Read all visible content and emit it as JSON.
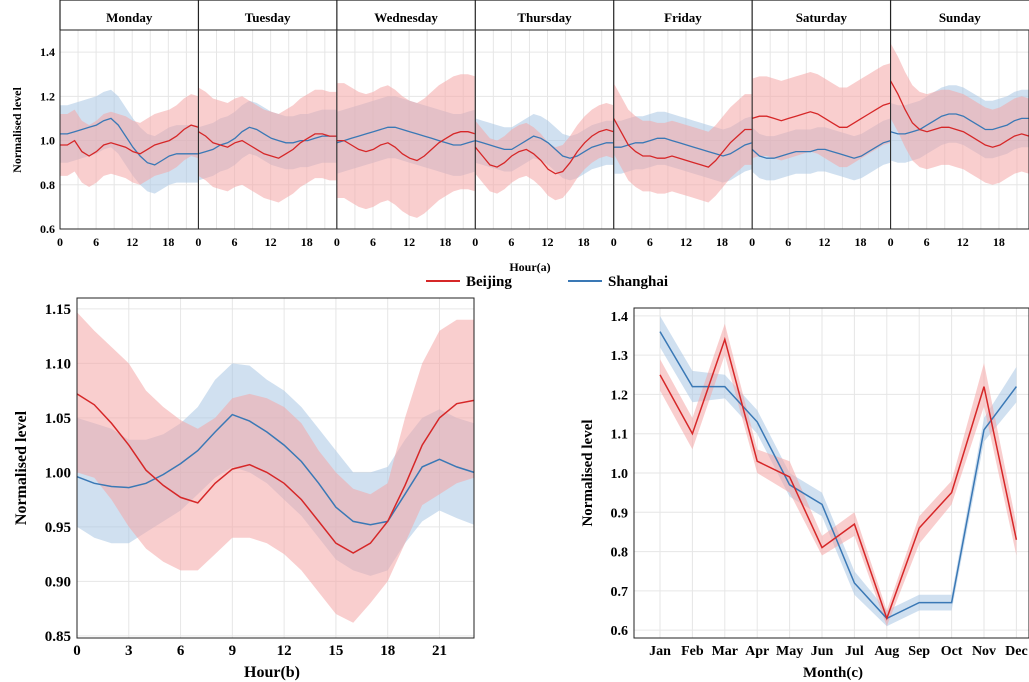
{
  "colors": {
    "beijing": "#d62728",
    "shanghai": "#3a78b5",
    "beijing_band": "#f4a6a6",
    "shanghai_band": "#a9c6e3"
  },
  "legend": {
    "items": [
      {
        "label": "Beijing",
        "color": "#d62728"
      },
      {
        "label": "Shanghai",
        "color": "#3a78b5"
      }
    ]
  },
  "chart_data": [
    {
      "id": "a",
      "type": "line",
      "panels": [
        "Monday",
        "Tuesday",
        "Wednesday",
        "Thursday",
        "Friday",
        "Saturday",
        "Sunday"
      ],
      "xlabel": "Hour(a)",
      "ylabel": "Normalised level",
      "xticks": [
        0,
        6,
        12,
        18
      ],
      "xlim": [
        0,
        23
      ],
      "ylim": [
        0.6,
        1.5
      ],
      "yticks": [
        "0.6",
        "0.8",
        "1.0",
        "1.2",
        "1.4"
      ],
      "series": [
        {
          "name": "Beijing",
          "values": [
            [
              0.98,
              0.98,
              1.0,
              0.95,
              0.93,
              0.95,
              0.98,
              0.99,
              0.98,
              0.97,
              0.95,
              0.94,
              0.96,
              0.98,
              0.99,
              1.0,
              1.02,
              1.05,
              1.07,
              1.06
            ],
            [
              1.04,
              1.02,
              0.99,
              0.98,
              0.97,
              0.99,
              1.0,
              0.98,
              0.96,
              0.94,
              0.93,
              0.92,
              0.94,
              0.96,
              0.99,
              1.01,
              1.03,
              1.03,
              1.02,
              1.02
            ],
            [
              1.0,
              1.0,
              0.98,
              0.96,
              0.95,
              0.96,
              0.98,
              0.99,
              0.97,
              0.94,
              0.92,
              0.91,
              0.93,
              0.96,
              0.99,
              1.01,
              1.03,
              1.04,
              1.04,
              1.03
            ],
            [
              0.97,
              0.93,
              0.89,
              0.88,
              0.9,
              0.93,
              0.95,
              0.96,
              0.94,
              0.91,
              0.87,
              0.85,
              0.86,
              0.9,
              0.95,
              0.99,
              1.02,
              1.04,
              1.05,
              1.04
            ],
            [
              1.1,
              1.04,
              0.98,
              0.95,
              0.93,
              0.93,
              0.92,
              0.92,
              0.93,
              0.92,
              0.91,
              0.9,
              0.89,
              0.88,
              0.91,
              0.95,
              0.99,
              1.02,
              1.05,
              1.05
            ],
            [
              1.1,
              1.11,
              1.11,
              1.1,
              1.09,
              1.1,
              1.11,
              1.12,
              1.13,
              1.12,
              1.1,
              1.08,
              1.06,
              1.06,
              1.08,
              1.1,
              1.12,
              1.14,
              1.16,
              1.17
            ],
            [
              1.27,
              1.21,
              1.14,
              1.08,
              1.05,
              1.04,
              1.05,
              1.06,
              1.06,
              1.05,
              1.04,
              1.02,
              1.0,
              0.98,
              0.97,
              0.98,
              1.0,
              1.02,
              1.03,
              1.02
            ]
          ]
        },
        {
          "name": "Shanghai",
          "values": [
            [
              1.03,
              1.03,
              1.04,
              1.05,
              1.06,
              1.07,
              1.09,
              1.1,
              1.07,
              1.02,
              0.97,
              0.93,
              0.9,
              0.89,
              0.91,
              0.93,
              0.94,
              0.94,
              0.94,
              0.94
            ],
            [
              0.94,
              0.95,
              0.96,
              0.98,
              0.99,
              1.01,
              1.04,
              1.06,
              1.05,
              1.03,
              1.01,
              1.0,
              0.99,
              0.99,
              1.0,
              1.0,
              1.01,
              1.02,
              1.02,
              1.02
            ],
            [
              0.99,
              1.0,
              1.01,
              1.02,
              1.03,
              1.04,
              1.05,
              1.06,
              1.06,
              1.05,
              1.04,
              1.03,
              1.02,
              1.01,
              1.0,
              0.99,
              0.98,
              0.98,
              0.99,
              1.0
            ],
            [
              1.0,
              0.99,
              0.98,
              0.97,
              0.96,
              0.96,
              0.98,
              1.0,
              1.02,
              1.01,
              0.99,
              0.96,
              0.93,
              0.92,
              0.93,
              0.95,
              0.97,
              0.98,
              0.99,
              0.99
            ],
            [
              0.97,
              0.97,
              0.98,
              0.99,
              0.99,
              1.0,
              1.01,
              1.01,
              1.0,
              0.99,
              0.98,
              0.97,
              0.96,
              0.95,
              0.94,
              0.93,
              0.94,
              0.96,
              0.98,
              0.99
            ],
            [
              0.96,
              0.93,
              0.92,
              0.92,
              0.93,
              0.94,
              0.95,
              0.95,
              0.95,
              0.96,
              0.96,
              0.95,
              0.94,
              0.93,
              0.92,
              0.93,
              0.95,
              0.97,
              0.99,
              1.0
            ],
            [
              1.04,
              1.03,
              1.03,
              1.04,
              1.05,
              1.07,
              1.09,
              1.11,
              1.12,
              1.12,
              1.11,
              1.09,
              1.07,
              1.05,
              1.05,
              1.06,
              1.07,
              1.09,
              1.1,
              1.1
            ]
          ]
        }
      ]
    },
    {
      "id": "b",
      "type": "line",
      "xlabel": "Hour(b)",
      "ylabel": "Normalised level",
      "xlim": [
        0,
        23
      ],
      "ylim": [
        0.848,
        1.16
      ],
      "xticks": [
        "0",
        "3",
        "6",
        "9",
        "12",
        "15",
        "18",
        "21"
      ],
      "yticks": [
        "0.85",
        "0.90",
        "0.95",
        "1.00",
        "1.05",
        "1.10",
        "1.15"
      ],
      "x": [
        0,
        1,
        2,
        3,
        4,
        5,
        6,
        7,
        8,
        9,
        10,
        11,
        12,
        13,
        14,
        15,
        16,
        17,
        18,
        19,
        20,
        21,
        22,
        23
      ],
      "series": [
        {
          "name": "Beijing",
          "values": [
            1.072,
            1.062,
            1.045,
            1.025,
            1.002,
            0.988,
            0.977,
            0.972,
            0.99,
            1.003,
            1.007,
            1.0,
            0.99,
            0.975,
            0.955,
            0.935,
            0.926,
            0.935,
            0.955,
            0.988,
            1.025,
            1.05,
            1.063,
            1.066
          ],
          "upper": [
            1.147,
            1.13,
            1.115,
            1.1,
            1.075,
            1.06,
            1.048,
            1.04,
            1.05,
            1.068,
            1.072,
            1.068,
            1.06,
            1.045,
            1.02,
            1.0,
            0.985,
            0.98,
            0.99,
            1.05,
            1.1,
            1.13,
            1.14,
            1.14
          ],
          "lower": [
            1.0,
            0.995,
            0.975,
            0.95,
            0.93,
            0.918,
            0.91,
            0.91,
            0.925,
            0.94,
            0.94,
            0.935,
            0.925,
            0.91,
            0.89,
            0.87,
            0.862,
            0.88,
            0.9,
            0.935,
            0.97,
            0.98,
            0.99,
            0.995
          ]
        },
        {
          "name": "Shanghai",
          "values": [
            0.996,
            0.99,
            0.987,
            0.986,
            0.99,
            0.998,
            1.008,
            1.02,
            1.037,
            1.053,
            1.047,
            1.037,
            1.025,
            1.01,
            0.99,
            0.968,
            0.955,
            0.952,
            0.955,
            0.98,
            1.005,
            1.012,
            1.005,
            1.0
          ],
          "upper": [
            1.05,
            1.045,
            1.04,
            1.03,
            1.03,
            1.035,
            1.045,
            1.06,
            1.085,
            1.1,
            1.098,
            1.085,
            1.075,
            1.06,
            1.04,
            1.02,
            1.0,
            1.0,
            1.005,
            1.03,
            1.05,
            1.058,
            1.05,
            1.045
          ],
          "lower": [
            0.95,
            0.94,
            0.935,
            0.935,
            0.945,
            0.955,
            0.965,
            0.98,
            0.995,
            1.005,
            1.0,
            0.99,
            0.975,
            0.96,
            0.94,
            0.92,
            0.91,
            0.905,
            0.91,
            0.935,
            0.955,
            0.965,
            0.958,
            0.952
          ]
        }
      ]
    },
    {
      "id": "c",
      "type": "line",
      "xlabel": "Month(c)",
      "ylabel": "Normalised level",
      "ylim": [
        0.58,
        1.42
      ],
      "yticks": [
        "0.6",
        "0.7",
        "0.8",
        "0.9",
        "1.0",
        "1.1",
        "1.2",
        "1.3",
        "1.4"
      ],
      "categories": [
        "Jan",
        "Feb",
        "Mar",
        "Apr",
        "May",
        "Jun",
        "Jul",
        "Aug",
        "Sep",
        "Oct",
        "Nov",
        "Dec"
      ],
      "series": [
        {
          "name": "Beijing",
          "values": [
            1.25,
            1.1,
            1.34,
            1.03,
            0.99,
            0.81,
            0.87,
            0.63,
            0.86,
            0.95,
            1.22,
            0.83
          ],
          "upper": [
            1.29,
            1.14,
            1.38,
            1.06,
            1.03,
            0.84,
            0.9,
            0.65,
            0.89,
            0.98,
            1.28,
            0.87
          ],
          "lower": [
            1.21,
            1.06,
            1.3,
            1.0,
            0.95,
            0.79,
            0.84,
            0.61,
            0.82,
            0.92,
            1.17,
            0.79
          ]
        },
        {
          "name": "Shanghai",
          "values": [
            1.36,
            1.22,
            1.22,
            1.13,
            0.97,
            0.92,
            0.72,
            0.63,
            0.67,
            0.67,
            1.11,
            1.22
          ],
          "upper": [
            1.4,
            1.26,
            1.25,
            1.16,
            1.0,
            0.95,
            0.75,
            0.65,
            0.69,
            0.69,
            1.14,
            1.27
          ],
          "lower": [
            1.32,
            1.18,
            1.19,
            1.1,
            0.94,
            0.89,
            0.69,
            0.61,
            0.65,
            0.65,
            1.08,
            1.18
          ]
        }
      ]
    }
  ]
}
